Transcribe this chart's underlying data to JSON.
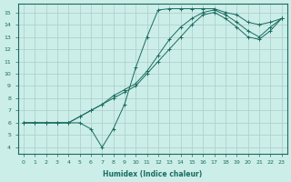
{
  "title": "",
  "xlabel": "Humidex (Indice chaleur)",
  "ylabel": "",
  "bg_color": "#cceee8",
  "grid_color": "#aacccc",
  "line_color": "#1a6b60",
  "xlim": [
    -0.5,
    23.5
  ],
  "ylim": [
    3.5,
    15.7
  ],
  "xticks": [
    0,
    1,
    2,
    3,
    4,
    5,
    6,
    7,
    8,
    9,
    10,
    11,
    12,
    13,
    14,
    15,
    16,
    17,
    18,
    19,
    20,
    21,
    22,
    23
  ],
  "yticks": [
    4,
    5,
    6,
    7,
    8,
    9,
    10,
    11,
    12,
    13,
    14,
    15
  ],
  "lines": [
    {
      "x": [
        0,
        1,
        2,
        3,
        4,
        5,
        6,
        7,
        8,
        9,
        10,
        11,
        12,
        13,
        14,
        15,
        16,
        17,
        18,
        19,
        20,
        21,
        22,
        23
      ],
      "y": [
        6,
        6,
        6,
        6,
        6,
        6,
        5.5,
        4,
        5.5,
        7.5,
        10.5,
        13,
        15.2,
        15.3,
        15.3,
        15.3,
        15.3,
        15.3,
        15.0,
        14.8,
        14.2,
        14.0,
        14.2,
        14.5
      ]
    },
    {
      "x": [
        0,
        1,
        2,
        3,
        4,
        5,
        6,
        7,
        8,
        9,
        10,
        11,
        12,
        13,
        14,
        15,
        16,
        17,
        18,
        19,
        20,
        21,
        22,
        23
      ],
      "y": [
        6,
        6,
        6,
        6,
        6,
        6.5,
        7,
        7.5,
        8.2,
        8.7,
        9.2,
        10.2,
        11.5,
        12.8,
        13.8,
        14.5,
        15.0,
        15.2,
        14.8,
        14.2,
        13.5,
        13.0,
        13.8,
        14.5
      ]
    },
    {
      "x": [
        0,
        1,
        2,
        3,
        4,
        5,
        6,
        7,
        8,
        9,
        10,
        11,
        12,
        13,
        14,
        15,
        16,
        17,
        18,
        19,
        20,
        21,
        22,
        23
      ],
      "y": [
        6,
        6,
        6,
        6,
        6,
        6.5,
        7,
        7.5,
        8.0,
        8.5,
        9.0,
        10.0,
        11.0,
        12.0,
        13.0,
        14.0,
        14.8,
        15.0,
        14.5,
        13.8,
        13.0,
        12.8,
        13.5,
        14.5
      ]
    }
  ]
}
